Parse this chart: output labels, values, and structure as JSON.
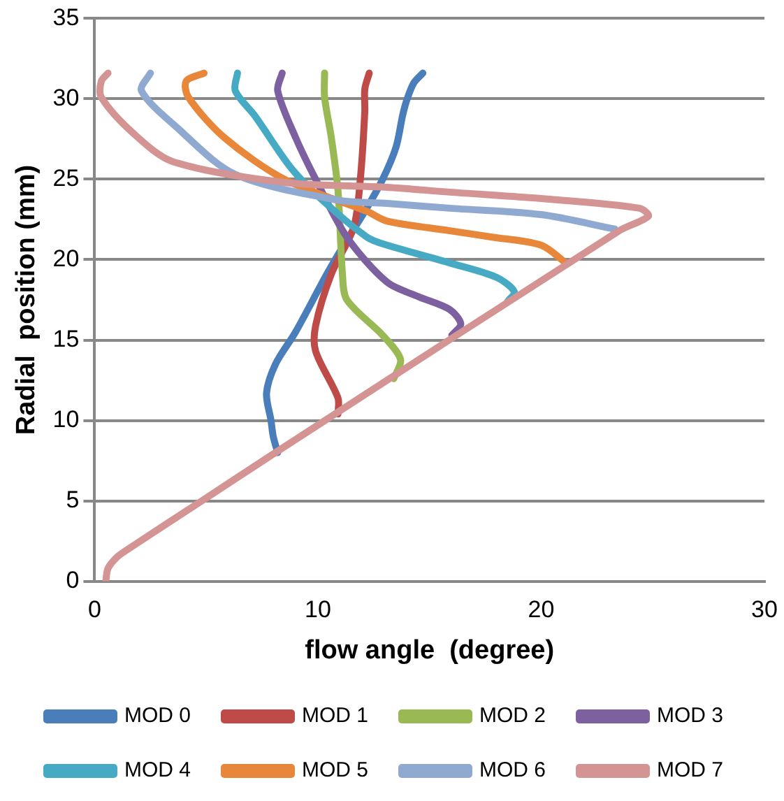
{
  "chart_data": {
    "type": "line",
    "xlabel": "flow angle  (degree)",
    "ylabel": "Radial  position (mm)",
    "xlim": [
      0,
      30
    ],
    "xticks": [
      0,
      10,
      20,
      30
    ],
    "ylim": [
      0,
      35
    ],
    "yticks": [
      0,
      5,
      10,
      15,
      20,
      25,
      30,
      35
    ],
    "grid": "y",
    "legend": "bottom",
    "marker": "none",
    "line_style": "solid",
    "series": [
      {
        "name": "MOD 0",
        "color": "#4a7ebb",
        "x": [
          8.2,
          8.0,
          7.9,
          7.7,
          8.1,
          9.0,
          10.4,
          11.2,
          12.1,
          12.9,
          13.5,
          13.8,
          14.0,
          14.3,
          14.7
        ],
        "values": [
          8,
          9,
          10,
          11.7,
          13.5,
          15.5,
          19.1,
          21,
          23,
          25,
          27,
          29,
          30,
          31,
          31.6
        ]
      },
      {
        "name": "MOD 1",
        "color": "#be4b48",
        "x": [
          10.9,
          10.9,
          9.9,
          9.9,
          10.6,
          11.6,
          11.9,
          12.1,
          12.1,
          12.3
        ],
        "values": [
          10.4,
          11.4,
          14.3,
          15.9,
          19.1,
          22,
          25,
          29.2,
          30.6,
          31.6
        ]
      },
      {
        "name": "MOD 2",
        "color": "#98b954",
        "x": [
          13.4,
          13.7,
          12.9,
          11.3,
          11.1,
          10.9,
          10.6,
          10.3,
          10.3
        ],
        "values": [
          12.6,
          13.8,
          15.3,
          17.5,
          19.1,
          24.3,
          27.6,
          30.1,
          31.6
        ]
      },
      {
        "name": "MOD 3",
        "color": "#7d60a0",
        "x": [
          16.0,
          16.4,
          15.9,
          14.5,
          13.1,
          11.3,
          9.9,
          9.0,
          8.2,
          8.4
        ],
        "values": [
          15.3,
          16.0,
          16.9,
          17.7,
          18.6,
          21.4,
          25,
          27.6,
          30.5,
          31.6
        ]
      },
      {
        "name": "MOD 4",
        "color": "#46aac5",
        "x": [
          18.5,
          18.8,
          18.0,
          15.9,
          13.1,
          12.2,
          10.2,
          8.8,
          7.2,
          6.3,
          6.4
        ],
        "values": [
          17.4,
          18.0,
          18.9,
          19.8,
          20.9,
          21.4,
          23.7,
          25.7,
          28.9,
          30.5,
          31.6
        ]
      },
      {
        "name": "MOD 5",
        "color": "#e8863a",
        "x": [
          21.1,
          20.0,
          17.8,
          15.9,
          13.1,
          12.2,
          8.5,
          5.8,
          4.2,
          4.1,
          4.9
        ],
        "values": [
          19.8,
          20.9,
          21.4,
          21.8,
          22.4,
          23.0,
          25,
          27.6,
          30.1,
          31.1,
          31.6
        ]
      },
      {
        "name": "MOD 6",
        "color": "#8fa9d0",
        "x": [
          23.3,
          20.0,
          15.9,
          13.1,
          10.9,
          6.3,
          3.7,
          2.1,
          2.5
        ],
        "values": [
          21.9,
          22.8,
          23.2,
          23.5,
          23.7,
          25.3,
          28.2,
          30.5,
          31.6
        ]
      },
      {
        "name": "MOD 7",
        "color": "#d49493",
        "x": [
          0.5,
          0.6,
          1.0,
          1.5,
          4.8,
          8.1,
          23.5,
          24.8,
          24.4,
          20.0,
          15.9,
          13.1,
          8.5,
          3.5,
          1.7,
          0.3,
          0.3,
          0.6
        ],
        "values": [
          0,
          0.8,
          1.5,
          2,
          5,
          8,
          21.8,
          22.7,
          23.2,
          23.8,
          24.2,
          24.5,
          24.8,
          26.1,
          27.9,
          30.1,
          31.1,
          31.6
        ]
      }
    ]
  }
}
